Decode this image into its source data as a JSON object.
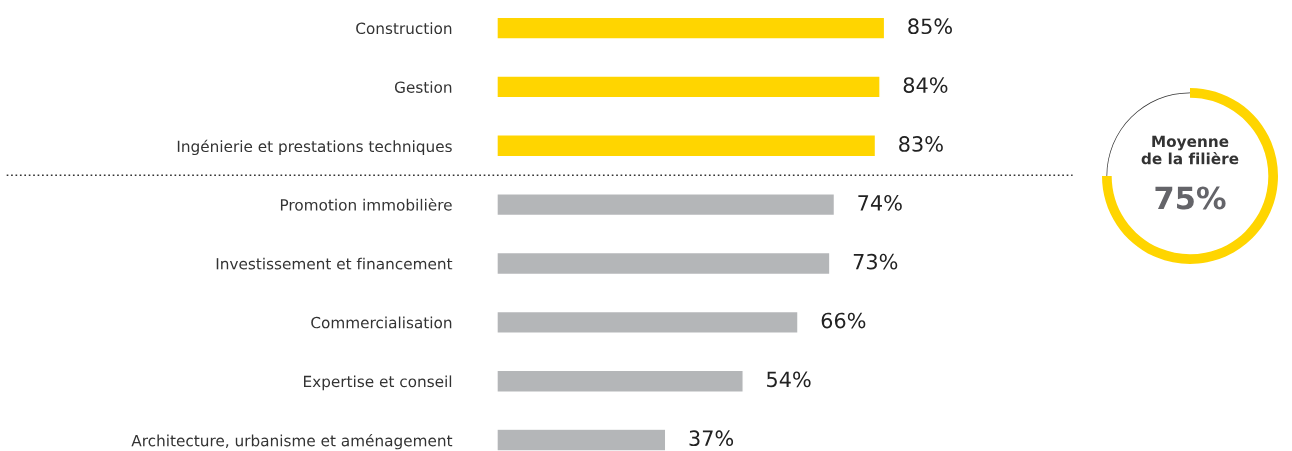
{
  "chart_data": [
    {
      "type": "bar",
      "orientation": "horizontal",
      "categories": [
        "Construction",
        "Gestion",
        "Ingénierie et prestations techniques",
        "Promotion immobilière",
        "Investissement et financement",
        "Commercialisation",
        "Expertise et conseil",
        "Architecture, urbanisme et aménagement"
      ],
      "values": [
        85,
        84,
        83,
        74,
        73,
        66,
        54,
        37
      ],
      "colors": [
        "#ffd500",
        "#ffd500",
        "#ffd500",
        "#b4b6b8",
        "#b4b6b8",
        "#b4b6b8",
        "#b4b6b8",
        "#b4b6b8"
      ],
      "value_labels": [
        "85%",
        "84%",
        "83%",
        "74%",
        "73%",
        "66%",
        "54%",
        "37%"
      ],
      "grid": false,
      "legend": false
    },
    {
      "type": "donut",
      "title": "Moyenne\nde la filière",
      "categories": [
        null,
        null
      ],
      "values": [
        75,
        25
      ],
      "colors": [
        "#ffd500",
        "#333333"
      ],
      "value_labels": [
        "75%",
        null
      ],
      "legend": false
    }
  ]
}
